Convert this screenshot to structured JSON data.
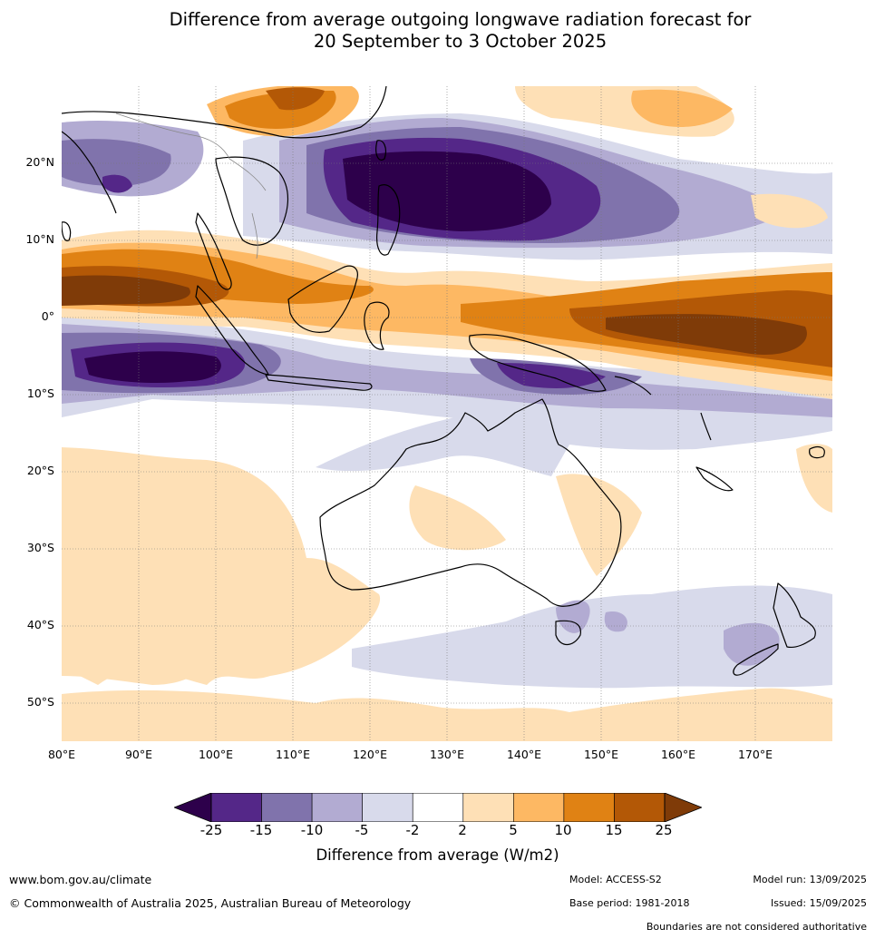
{
  "title": {
    "line1": "Difference from average outgoing longwave radiation forecast for",
    "line2": "20 September to 3 October 2025"
  },
  "map": {
    "lat_labels": [
      "20°N",
      "10°N",
      "0°",
      "10°S",
      "20°S",
      "30°S",
      "40°S",
      "50°S"
    ],
    "lon_labels": [
      "80°E",
      "90°E",
      "100°E",
      "110°E",
      "120°E",
      "130°E",
      "140°E",
      "150°E",
      "160°E",
      "170°E"
    ],
    "extent": {
      "lon_min": 80,
      "lon_max": 180,
      "lat_min": -55,
      "lat_max": 30
    },
    "colors": {
      "lt_m25": "#2d004b",
      "m25_m15": "#542788",
      "m15_m10": "#8073ac",
      "m10_m5": "#b2abd2",
      "m5_m2": "#d8daeb",
      "m2_2": "#ffffff",
      "2_5": "#fee0b6",
      "5_10": "#fdb863",
      "10_15": "#e08214",
      "15_25": "#b35806",
      "gt_25": "#7f3b08",
      "coast": "#000000"
    }
  },
  "colorbar": {
    "ticks": [
      "-25",
      "-15",
      "-10",
      "-5",
      "-2",
      "2",
      "5",
      "10",
      "15",
      "25"
    ],
    "colors": [
      "#542788",
      "#8073ac",
      "#b2abd2",
      "#d8daeb",
      "#ffffff",
      "#fee0b6",
      "#fdb863",
      "#e08214",
      "#b35806"
    ],
    "low_color": "#2d004b",
    "high_color": "#7f3b08",
    "title": "Difference from average (W/m2)"
  },
  "footer": {
    "website": "www.bom.gov.au/climate",
    "copyright": "© Commonwealth of Australia 2025, Australian Bureau of Meteorology",
    "model": "Model: ACCESS-S2",
    "base_period": "Base period: 1981-2018",
    "model_run": "Model run: 13/09/2025",
    "issued": "Issued: 15/09/2025",
    "disclaimer": "Boundaries are not considered authoritative"
  }
}
